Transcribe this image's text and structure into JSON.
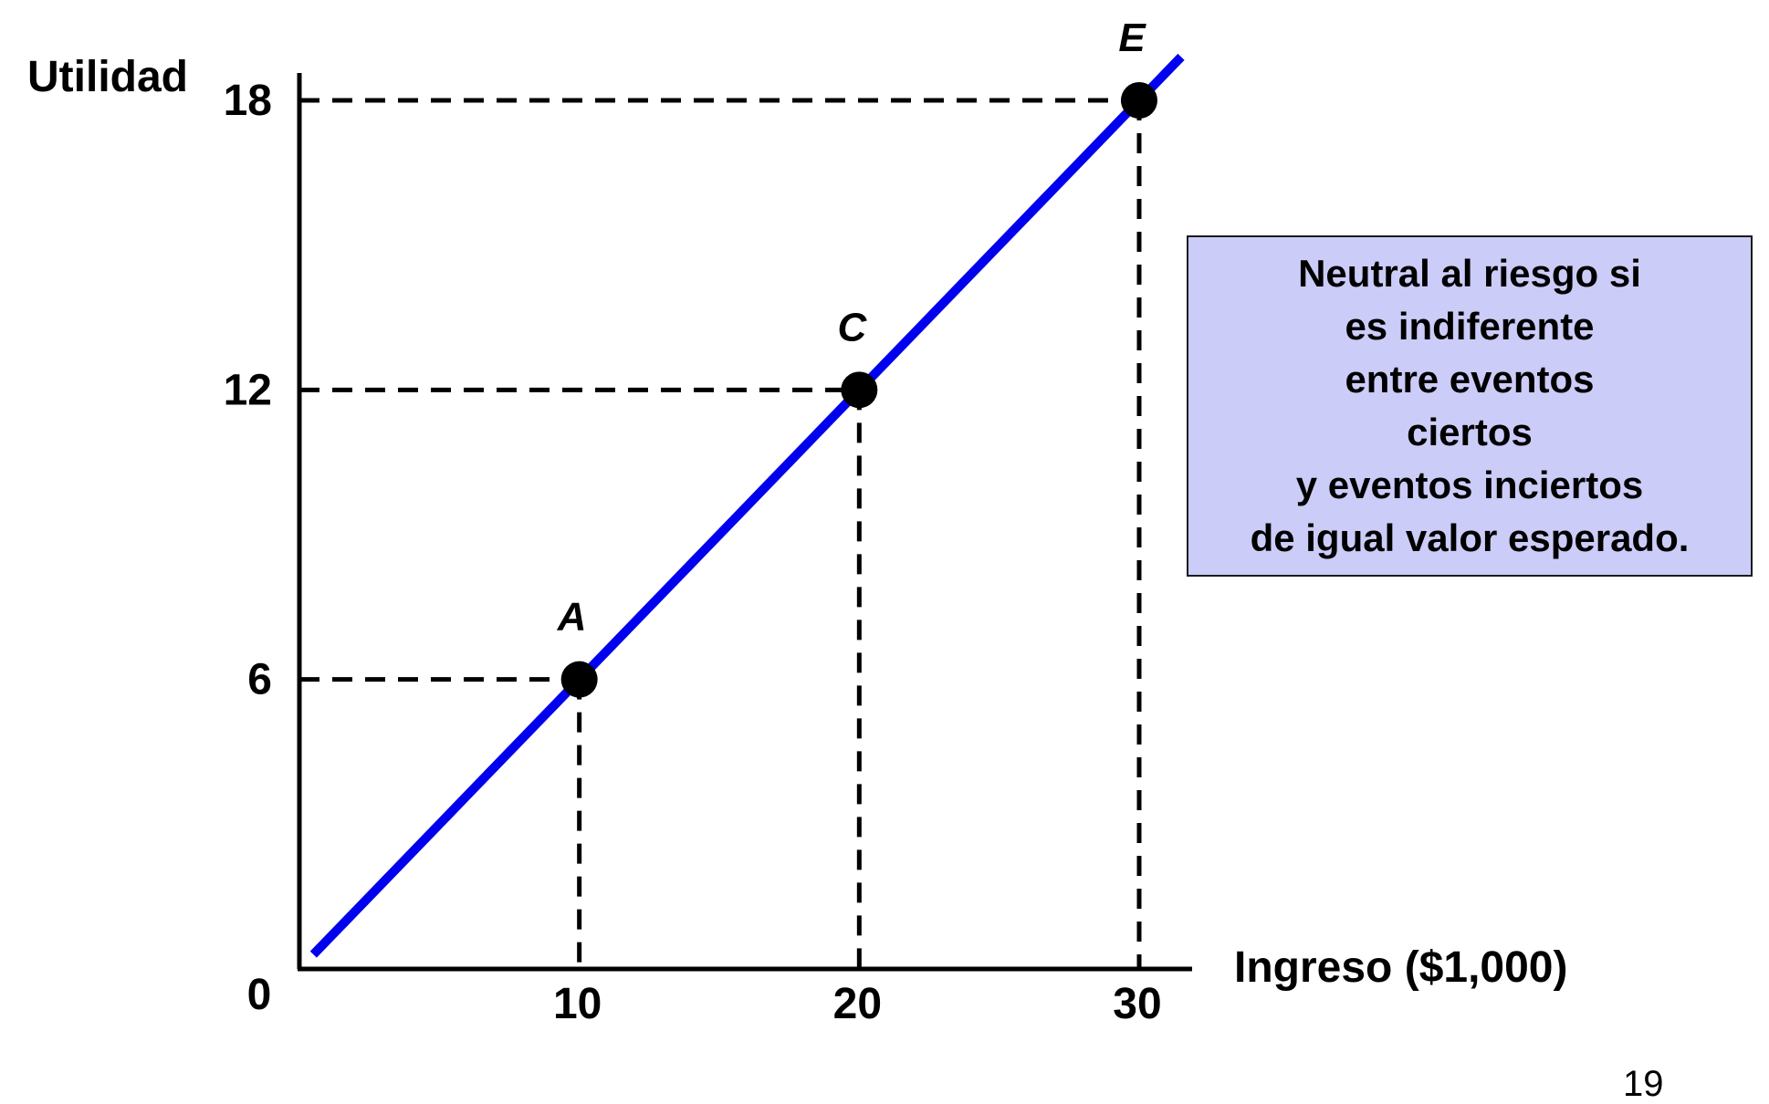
{
  "chart_data": {
    "type": "line",
    "title": "",
    "ylabel": "Utilidad",
    "xlabel": "Ingreso ($1,000)",
    "xlim": [
      0,
      30
    ],
    "ylim": [
      0,
      18
    ],
    "origin_label": "0",
    "x_ticks": [
      10,
      20,
      30
    ],
    "y_ticks": [
      6,
      12,
      18
    ],
    "x_tick_labels": [
      "10",
      "20",
      "30"
    ],
    "y_tick_labels": [
      "6",
      "12",
      "18"
    ],
    "series": [
      {
        "name": "Utilidad",
        "color": "#0000ee",
        "x": [
          0.5,
          31.5
        ],
        "y": [
          0.3,
          18.9
        ]
      }
    ],
    "points": [
      {
        "label": "A",
        "x": 10,
        "y": 6
      },
      {
        "label": "C",
        "x": 20,
        "y": 12
      },
      {
        "label": "E",
        "x": 30,
        "y": 18
      }
    ],
    "annotation": {
      "lines": [
        "Neutral al riesgo si",
        "es indiferente",
        "entre eventos",
        "ciertos",
        "y eventos inciertos",
        "de igual valor esperado."
      ],
      "background": "#ccccf8"
    }
  },
  "page_number": "19"
}
